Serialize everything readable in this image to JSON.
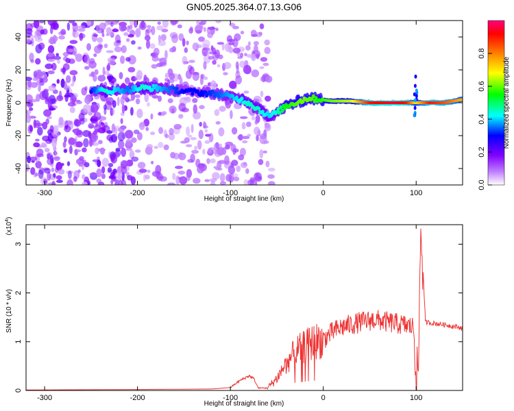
{
  "title": "GN05.2025.364.07.13.G06",
  "chart_data": [
    {
      "type": "heatmap",
      "xlabel": "Height of straight line (km)",
      "ylabel": "Frequency (Hz)",
      "xlim": [
        -320,
        150
      ],
      "ylim": [
        -50,
        50
      ],
      "xticks": [
        -300,
        -200,
        -100,
        0,
        100
      ],
      "yticks": [
        -40,
        -20,
        0,
        20,
        40
      ],
      "colorbar": {
        "label": "Normalized spectral amplitude",
        "range": [
          0,
          1
        ],
        "ticks": [
          0.0,
          0.2,
          0.4,
          0.6,
          0.8
        ],
        "tick_labels": [
          "0.0",
          "0.2",
          "0.4",
          "0.6",
          "0.8"
        ],
        "colors": [
          "#ffffff",
          "#8000ff",
          "#0000ff",
          "#00ffff",
          "#00ff00",
          "#ffff00",
          "#ff8000",
          "#ff0000",
          "#ff0080"
        ]
      },
      "ridge": [
        {
          "x": -250,
          "y": 8,
          "a": 0.3
        },
        {
          "x": -235,
          "y": 7,
          "a": 0.45
        },
        {
          "x": -210,
          "y": 8,
          "a": 0.35
        },
        {
          "x": -195,
          "y": 9,
          "a": 0.45
        },
        {
          "x": -180,
          "y": 9,
          "a": 0.4
        },
        {
          "x": -165,
          "y": 8,
          "a": 0.35
        },
        {
          "x": -150,
          "y": 7,
          "a": 0.3
        },
        {
          "x": -130,
          "y": 6,
          "a": 0.3
        },
        {
          "x": -110,
          "y": 5,
          "a": 0.35
        },
        {
          "x": -95,
          "y": 3,
          "a": 0.4
        },
        {
          "x": -80,
          "y": 0,
          "a": 0.45
        },
        {
          "x": -70,
          "y": -4,
          "a": 0.45
        },
        {
          "x": -58,
          "y": -8,
          "a": 0.4
        },
        {
          "x": -50,
          "y": -6,
          "a": 0.45
        },
        {
          "x": -40,
          "y": -2,
          "a": 0.55
        },
        {
          "x": -25,
          "y": 1,
          "a": 0.6
        },
        {
          "x": -15,
          "y": 3,
          "a": 0.6
        },
        {
          "x": -5,
          "y": 2,
          "a": 0.55
        },
        {
          "x": 10,
          "y": 1,
          "a": 0.6
        },
        {
          "x": 30,
          "y": 1,
          "a": 0.65
        },
        {
          "x": 50,
          "y": 0,
          "a": 0.9
        },
        {
          "x": 75,
          "y": 0,
          "a": 0.95
        },
        {
          "x": 90,
          "y": 0,
          "a": 0.9
        },
        {
          "x": 100,
          "y": 0,
          "a": 0.7
        },
        {
          "x": 115,
          "y": 0,
          "a": 0.9
        },
        {
          "x": 130,
          "y": 0,
          "a": 0.85
        },
        {
          "x": 150,
          "y": 2,
          "a": 0.75
        }
      ]
    },
    {
      "type": "line",
      "xlabel": "Height of straight line (km)",
      "ylabel": "SNR (10 * v/v)",
      "yexponent": "(x10",
      "yexponent_sup": "4",
      "yexponent_close": ")",
      "xlim": [
        -320,
        150
      ],
      "ylim": [
        0,
        3.4
      ],
      "xticks": [
        -300,
        -200,
        -100,
        0,
        100
      ],
      "yticks": [
        0,
        1,
        2,
        3
      ],
      "color": "#ee3333",
      "envelope": [
        {
          "x": -320,
          "y": 0.01
        },
        {
          "x": -200,
          "y": 0.02
        },
        {
          "x": -120,
          "y": 0.03
        },
        {
          "x": -100,
          "y": 0.06
        },
        {
          "x": -90,
          "y": 0.2
        },
        {
          "x": -80,
          "y": 0.3
        },
        {
          "x": -75,
          "y": 0.25
        },
        {
          "x": -70,
          "y": 0.05
        },
        {
          "x": -60,
          "y": 0.05
        },
        {
          "x": -50,
          "y": 0.25
        },
        {
          "x": -40,
          "y": 0.55
        },
        {
          "x": -30,
          "y": 0.8
        },
        {
          "x": -20,
          "y": 0.9
        },
        {
          "x": -10,
          "y": 1.0
        },
        {
          "x": 0,
          "y": 1.05
        },
        {
          "x": 10,
          "y": 1.2
        },
        {
          "x": 20,
          "y": 1.3
        },
        {
          "x": 30,
          "y": 1.35
        },
        {
          "x": 40,
          "y": 1.4
        },
        {
          "x": 55,
          "y": 1.45
        },
        {
          "x": 70,
          "y": 1.4
        },
        {
          "x": 85,
          "y": 1.35
        },
        {
          "x": 97,
          "y": 1.3
        },
        {
          "x": 102,
          "y": 0.05
        },
        {
          "x": 105,
          "y": 3.4
        },
        {
          "x": 110,
          "y": 1.4
        },
        {
          "x": 130,
          "y": 1.35
        },
        {
          "x": 150,
          "y": 1.28
        }
      ]
    }
  ]
}
